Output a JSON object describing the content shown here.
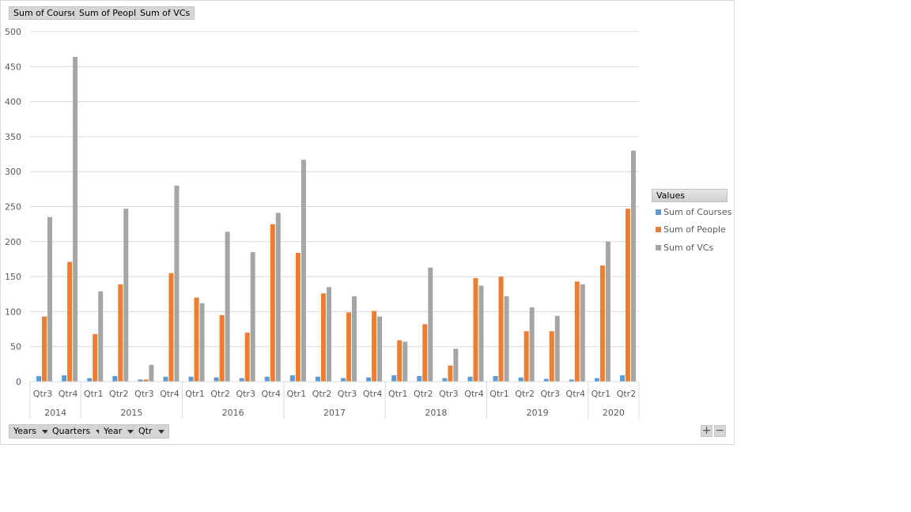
{
  "value_buttons": [
    "Sum of Courses",
    "Sum of People",
    "Sum of VCs"
  ],
  "axis_buttons": [
    "Years",
    "Quarters",
    "Year",
    "Qtr"
  ],
  "legend": {
    "header": "Values",
    "items": [
      {
        "label": "Sum of Courses",
        "color": "#5b9bd5"
      },
      {
        "label": "Sum of People",
        "color": "#ed7d31"
      },
      {
        "label": "Sum of VCs",
        "color": "#a5a5a5"
      }
    ]
  },
  "zoom": {
    "plus": "+",
    "minus": "−"
  },
  "chart_data": {
    "type": "bar",
    "yticks": [
      "0",
      "50",
      "100",
      "150",
      "200",
      "250",
      "300",
      "350",
      "400",
      "450",
      "500"
    ],
    "ylim": [
      0,
      500
    ],
    "grid": true,
    "legend_position": "right",
    "categories": [
      "Qtr3",
      "Qtr4",
      "Qtr1",
      "Qtr2",
      "Qtr3",
      "Qtr4",
      "Qtr1",
      "Qtr2",
      "Qtr3",
      "Qtr4",
      "Qtr1",
      "Qtr2",
      "Qtr3",
      "Qtr4",
      "Qtr1",
      "Qtr2",
      "Qtr3",
      "Qtr4",
      "Qtr1",
      "Qtr2",
      "Qtr3",
      "Qtr4",
      "Qtr1",
      "Qtr2"
    ],
    "groups": [
      {
        "label": "2014",
        "count": 2
      },
      {
        "label": "2015",
        "count": 4
      },
      {
        "label": "2016",
        "count": 4
      },
      {
        "label": "2017",
        "count": 4
      },
      {
        "label": "2018",
        "count": 4
      },
      {
        "label": "2019",
        "count": 4
      },
      {
        "label": "2020",
        "count": 2
      }
    ],
    "series": [
      {
        "name": "Sum of Courses",
        "color": "#5b9bd5",
        "values": [
          8,
          9,
          5,
          8,
          3,
          7,
          7,
          6,
          5,
          7,
          9,
          7,
          5,
          6,
          9,
          8,
          5,
          7,
          8,
          6,
          4,
          3,
          5,
          9
        ]
      },
      {
        "name": "Sum of People",
        "color": "#ed7d31",
        "values": [
          93,
          171,
          68,
          139,
          3,
          155,
          120,
          95,
          70,
          225,
          184,
          126,
          99,
          101,
          59,
          82,
          23,
          148,
          150,
          72,
          72,
          143,
          166,
          247
        ]
      },
      {
        "name": "Sum of VCs",
        "color": "#a5a5a5",
        "values": [
          235,
          464,
          129,
          247,
          24,
          280,
          112,
          214,
          185,
          241,
          317,
          135,
          122,
          93,
          57,
          163,
          47,
          137,
          122,
          106,
          94,
          139,
          200,
          330
        ]
      }
    ]
  }
}
